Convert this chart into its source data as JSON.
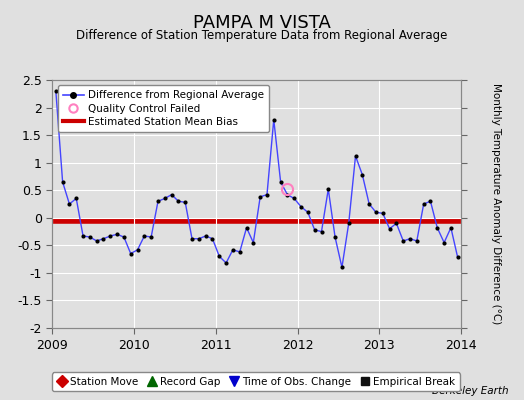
{
  "title": "PAMPA M VISTA",
  "subtitle": "Difference of Station Temperature Data from Regional Average",
  "ylabel": "Monthly Temperature Anomaly Difference (°C)",
  "xlabel_bottom": "Berkeley Earth",
  "ylim": [
    -2.0,
    2.5
  ],
  "yticks": [
    -2.0,
    -1.5,
    -1.0,
    -0.5,
    0.0,
    0.5,
    1.0,
    1.5,
    2.0,
    2.5
  ],
  "ytick_labels": [
    "-2",
    "-1.5",
    "-1",
    "-0.5",
    "0",
    "0.5",
    "1",
    "1.5",
    "2",
    "2.5"
  ],
  "xlim": [
    2009.0,
    2014.0
  ],
  "xticks": [
    2009,
    2010,
    2011,
    2012,
    2013,
    2014
  ],
  "mean_bias": -0.05,
  "line_color": "#4444ff",
  "marker_color": "#000000",
  "bias_color": "#cc0000",
  "background_color": "#e0e0e0",
  "qc_fail_x": 2011.875,
  "qc_fail_y": 0.52,
  "times": [
    2009.042,
    2009.125,
    2009.208,
    2009.292,
    2009.375,
    2009.458,
    2009.542,
    2009.625,
    2009.708,
    2009.792,
    2009.875,
    2009.958,
    2010.042,
    2010.125,
    2010.208,
    2010.292,
    2010.375,
    2010.458,
    2010.542,
    2010.625,
    2010.708,
    2010.792,
    2010.875,
    2010.958,
    2011.042,
    2011.125,
    2011.208,
    2011.292,
    2011.375,
    2011.458,
    2011.542,
    2011.625,
    2011.708,
    2011.792,
    2011.875,
    2011.958,
    2012.042,
    2012.125,
    2012.208,
    2012.292,
    2012.375,
    2012.458,
    2012.542,
    2012.625,
    2012.708,
    2012.792,
    2012.875,
    2012.958,
    2013.042,
    2013.125,
    2013.208,
    2013.292,
    2013.375,
    2013.458,
    2013.542,
    2013.625,
    2013.708,
    2013.792,
    2013.875,
    2013.958
  ],
  "values": [
    2.3,
    0.65,
    0.25,
    0.35,
    -0.33,
    -0.35,
    -0.42,
    -0.38,
    -0.33,
    -0.3,
    -0.35,
    -0.65,
    -0.58,
    -0.33,
    -0.35,
    0.3,
    0.35,
    0.42,
    0.3,
    0.28,
    -0.38,
    -0.38,
    -0.33,
    -0.38,
    -0.7,
    -0.82,
    -0.58,
    -0.62,
    -0.18,
    -0.45,
    0.38,
    0.42,
    1.78,
    0.65,
    0.42,
    0.35,
    0.2,
    0.1,
    -0.22,
    -0.25,
    0.52,
    -0.35,
    -0.9,
    -0.1,
    1.12,
    0.78,
    0.25,
    0.1,
    0.08,
    -0.2,
    -0.1,
    -0.42,
    -0.38,
    -0.42,
    0.25,
    0.3,
    -0.18,
    -0.45,
    -0.18,
    -0.72
  ]
}
